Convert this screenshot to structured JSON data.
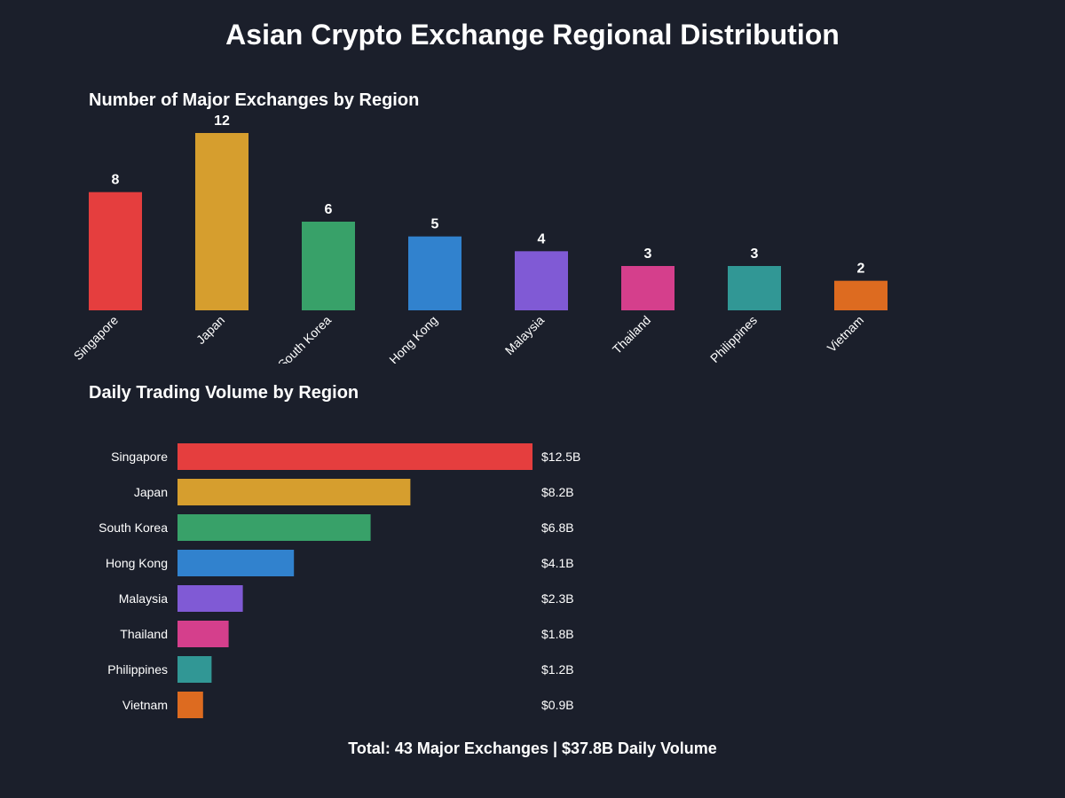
{
  "title": "Asian Crypto Exchange Regional Distribution",
  "footer": {
    "text": "Total: 43 Major Exchanges | $37.8B Daily Volume"
  },
  "chart_data": [
    {
      "type": "bar",
      "orientation": "vertical",
      "title": "Number of Major Exchanges by Region",
      "xlabel": "",
      "ylabel": "",
      "categories": [
        "Singapore",
        "Japan",
        "South Korea",
        "Hong Kong",
        "Malaysia",
        "Thailand",
        "Philippines",
        "Vietnam"
      ],
      "values": [
        8,
        12,
        6,
        5,
        4,
        3,
        3,
        2
      ],
      "value_labels": [
        "8",
        "12",
        "6",
        "5",
        "4",
        "3",
        "3",
        "2"
      ],
      "colors": [
        "#e53e3e",
        "#d69e2e",
        "#38a169",
        "#3182ce",
        "#805ad5",
        "#d53f8c",
        "#319795",
        "#dd6b20"
      ],
      "ylim": [
        0,
        12
      ],
      "grid": false,
      "legend": "none"
    },
    {
      "type": "bar",
      "orientation": "horizontal",
      "title": "Daily Trading Volume by Region",
      "xlabel": "",
      "ylabel": "",
      "unit": "$B",
      "categories": [
        "Singapore",
        "Japan",
        "South Korea",
        "Hong Kong",
        "Malaysia",
        "Thailand",
        "Philippines",
        "Vietnam"
      ],
      "values": [
        12.5,
        8.2,
        6.8,
        4.1,
        2.3,
        1.8,
        1.2,
        0.9
      ],
      "value_labels": [
        "$12.5B",
        "$8.2B",
        "$6.8B",
        "$4.1B",
        "$2.3B",
        "$1.8B",
        "$1.2B",
        "$0.9B"
      ],
      "colors": [
        "#e53e3e",
        "#d69e2e",
        "#38a169",
        "#3182ce",
        "#805ad5",
        "#d53f8c",
        "#319795",
        "#dd6b20"
      ],
      "xlim": [
        0,
        12.5
      ],
      "grid": false,
      "legend": "none"
    }
  ]
}
